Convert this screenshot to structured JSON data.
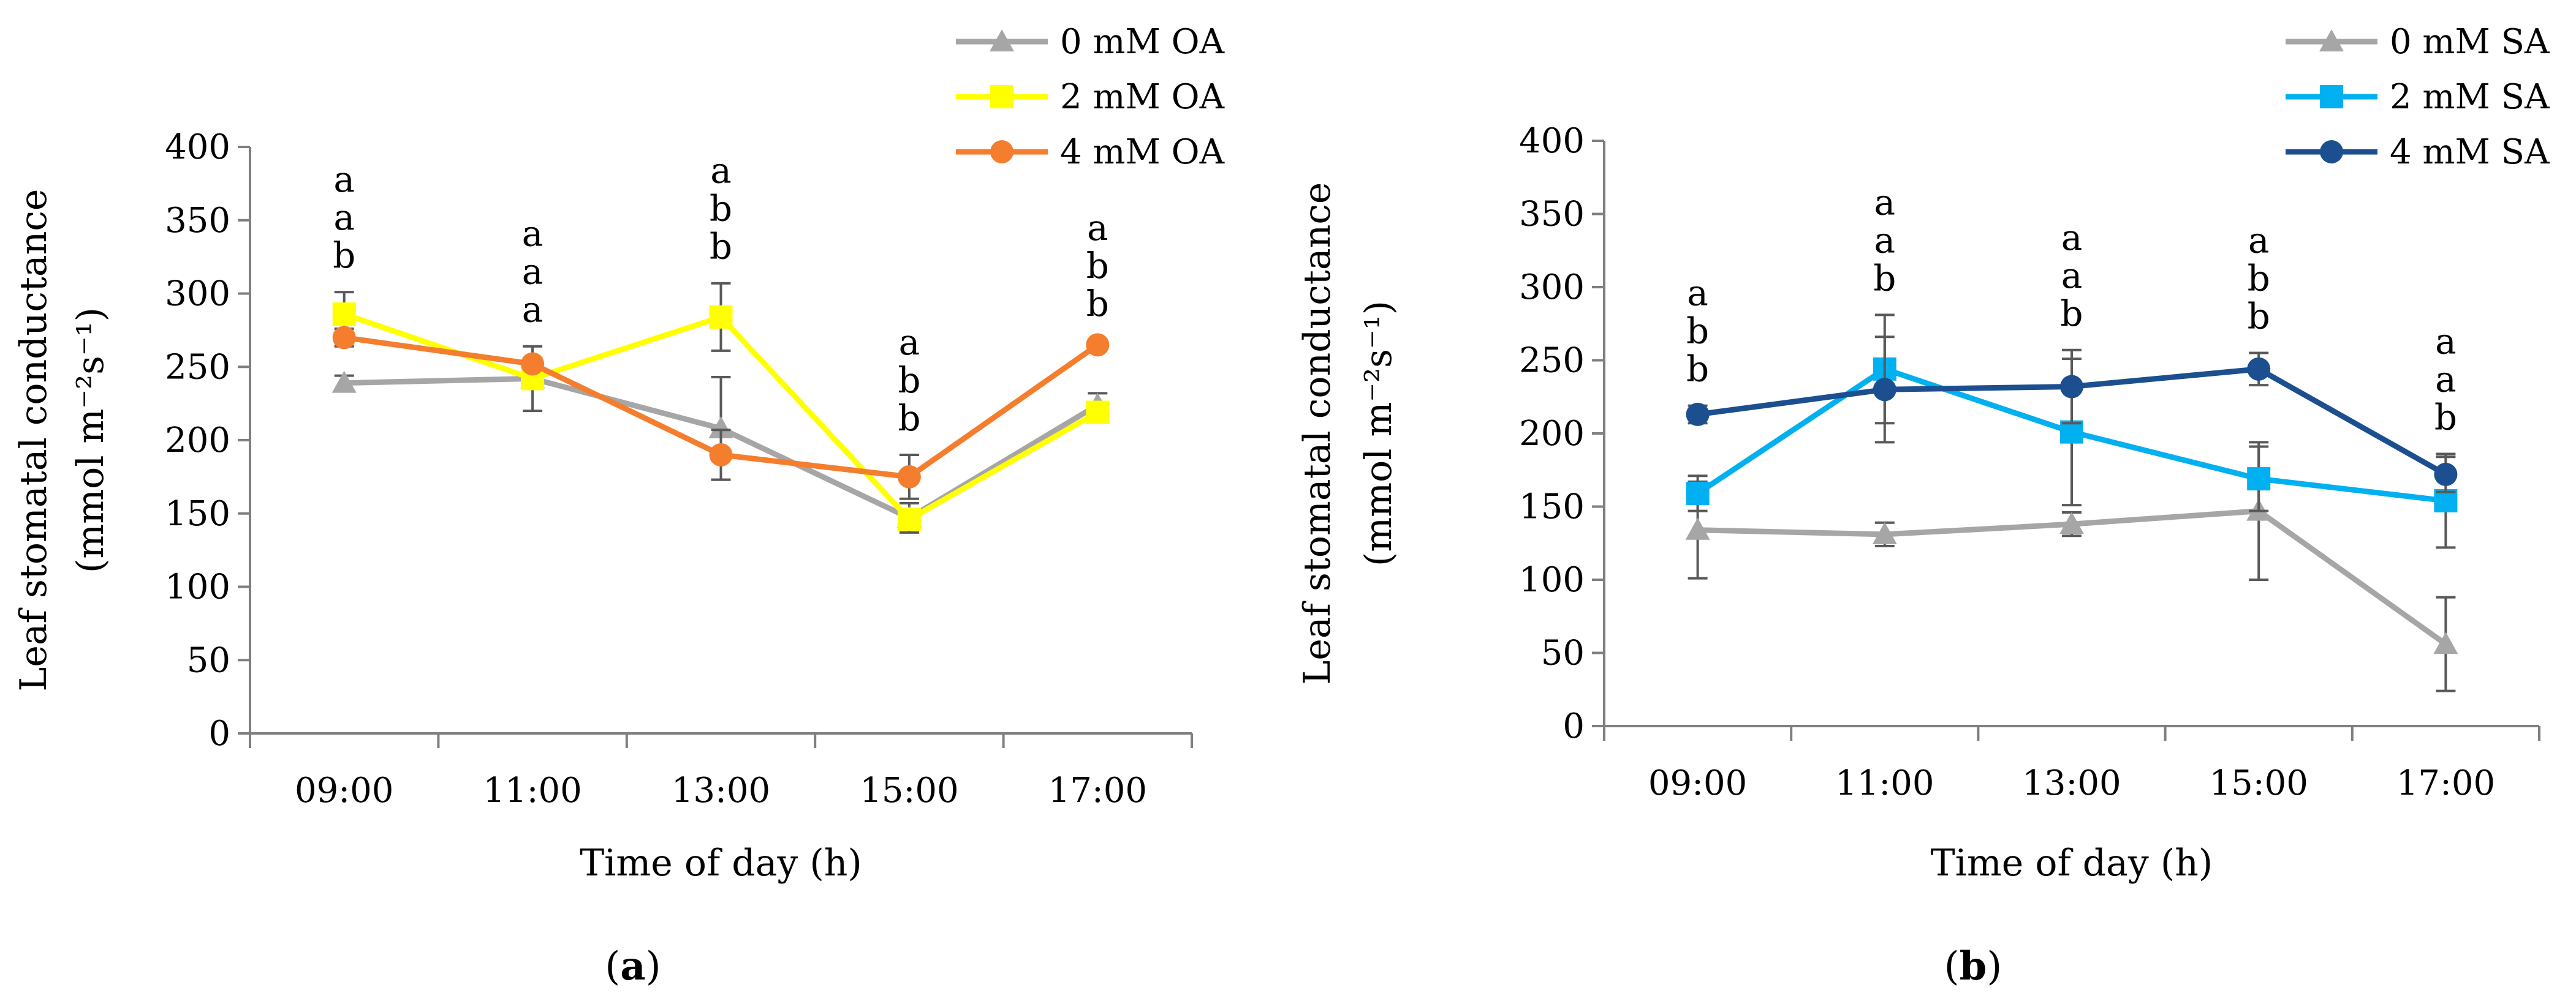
{
  "chart_data": [
    {
      "type": "line",
      "panel_label": "a",
      "title": "",
      "xlabel": "Time of day (h)",
      "ylabel": "Leaf stomatal conductance",
      "ylabel_units": "(mmol m⁻²s⁻¹)",
      "ylim": [
        0,
        400
      ],
      "yticks": [
        "0",
        "50",
        "100",
        "150",
        "200",
        "250",
        "300",
        "350",
        "400"
      ],
      "categories": [
        "09:00",
        "11:00",
        "13:00",
        "15:00",
        "17:00"
      ],
      "legend_position": "top-right",
      "series": [
        {
          "name": "0 mM OA",
          "color": "#A6A6A6",
          "marker": "triangle",
          "values": [
            239,
            242,
            208,
            147,
            224
          ],
          "errors": [
            5,
            3,
            35,
            10,
            8
          ]
        },
        {
          "name": "2 mM OA",
          "color": "#FFFF00",
          "marker": "square",
          "values": [
            286,
            242,
            284,
            146,
            219
          ],
          "errors": [
            15,
            22,
            23,
            6,
            5
          ]
        },
        {
          "name": "4 mM OA",
          "color": "#F47E2D",
          "marker": "circle",
          "values": [
            270,
            252,
            190,
            175,
            265
          ],
          "errors": [
            6,
            4,
            17,
            15,
            3
          ]
        }
      ],
      "significance": [
        [
          "a",
          "a",
          "b"
        ],
        [
          "a",
          "a",
          "a"
        ],
        [
          "a",
          "b",
          "b"
        ],
        [
          "a",
          "b",
          "b"
        ],
        [
          "a",
          "b",
          "b"
        ]
      ]
    },
    {
      "type": "line",
      "panel_label": "b",
      "title": "",
      "xlabel": "Time of day (h)",
      "ylabel": "Leaf stomatal conductance",
      "ylabel_units": "(mmol m⁻²s⁻¹)",
      "ylim": [
        0,
        400
      ],
      "yticks": [
        "0",
        "50",
        "100",
        "150",
        "200",
        "250",
        "300",
        "350",
        "400"
      ],
      "categories": [
        "09:00",
        "11:00",
        "13:00",
        "15:00",
        "17:00"
      ],
      "legend_position": "top-right",
      "series": [
        {
          "name": "0 mM SA",
          "color": "#A6A6A6",
          "marker": "triangle",
          "values": [
            134,
            131,
            138,
            147,
            56
          ],
          "errors": [
            33,
            8,
            8,
            47,
            32
          ]
        },
        {
          "name": "2 mM SA",
          "color": "#00B0F0",
          "marker": "square",
          "values": [
            159,
            244,
            201,
            169,
            154
          ],
          "errors": [
            12,
            37,
            50,
            22,
            32
          ]
        },
        {
          "name": "4 mM SA",
          "color": "#1B4F8F",
          "marker": "circle",
          "values": [
            213,
            230,
            232,
            244,
            172
          ],
          "errors": [
            6,
            36,
            25,
            11,
            12
          ]
        }
      ],
      "significance": [
        [
          "a",
          "b",
          "b"
        ],
        [
          "a",
          "a",
          "b"
        ],
        [
          "a",
          "a",
          "b"
        ],
        [
          "a",
          "b",
          "b"
        ],
        [
          "a",
          "a",
          "b"
        ]
      ]
    }
  ]
}
